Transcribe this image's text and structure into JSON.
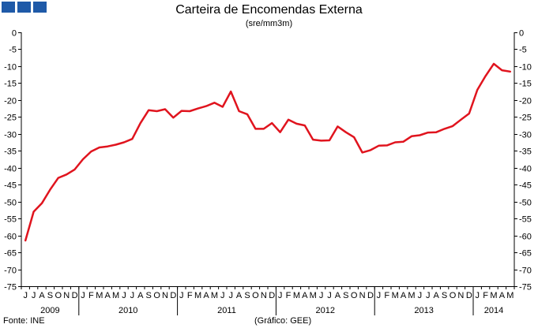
{
  "header": {
    "title": "Carteira de Encomendas Externa",
    "subtitle": "(sre/mm3m)"
  },
  "footer": {
    "source": "Fonte: INE",
    "credit": "(Gráfico: GEE)"
  },
  "colors": {
    "series": "#e0141e",
    "logo": "#1f5aa8"
  },
  "chart_data": {
    "type": "line",
    "title": "Carteira de Encomendas Externa",
    "subtitle": "(sre/mm3m)",
    "ylim": [
      -75,
      0
    ],
    "yticks": [
      0,
      -5,
      -10,
      -15,
      -20,
      -25,
      -30,
      -35,
      -40,
      -45,
      -50,
      -55,
      -60,
      -65,
      -70,
      -75
    ],
    "grid": false,
    "legend": "none",
    "month_labels": [
      "J",
      "J",
      "A",
      "S",
      "O",
      "N",
      "D",
      "J",
      "F",
      "M",
      "A",
      "M",
      "J",
      "J",
      "A",
      "S",
      "O",
      "N",
      "D",
      "J",
      "F",
      "M",
      "A",
      "M",
      "J",
      "J",
      "A",
      "S",
      "O",
      "N",
      "D",
      "J",
      "F",
      "M",
      "A",
      "M",
      "J",
      "J",
      "A",
      "S",
      "O",
      "N",
      "D",
      "J",
      "F",
      "M",
      "A",
      "M",
      "J",
      "J",
      "A",
      "S",
      "O",
      "N",
      "D",
      "J",
      "F",
      "M",
      "A",
      "M"
    ],
    "years": [
      {
        "label": "2009",
        "months": 7
      },
      {
        "label": "2010",
        "months": 12
      },
      {
        "label": "2011",
        "months": 12
      },
      {
        "label": "2012",
        "months": 12
      },
      {
        "label": "2013",
        "months": 12
      },
      {
        "label": "2014",
        "months": 5
      }
    ],
    "series": [
      {
        "values": [
          -61.5,
          -53,
          -50.5,
          -46.5,
          -43,
          -42,
          -40.5,
          -37.5,
          -35.2,
          -34,
          -33.7,
          -33.2,
          -32.5,
          -31.5,
          -26.8,
          -23,
          -23.3,
          -22.7,
          -25.2,
          -23.2,
          -23.3,
          -22.5,
          -21.8,
          -20.8,
          -22,
          -17.5,
          -23.3,
          -24.2,
          -28.5,
          -28.5,
          -26.8,
          -29.5,
          -25.8,
          -27,
          -27.5,
          -31.7,
          -32,
          -31.9,
          -27.8,
          -29.5,
          -31,
          -35.5,
          -34.8,
          -33.5,
          -33.4,
          -32.5,
          -32.3,
          -30.7,
          -30.4,
          -29.6,
          -29.5,
          -28.5,
          -27.7,
          -25.8,
          -24,
          -17,
          -12.9,
          -9.3,
          -11.2,
          -11.6
        ]
      }
    ]
  }
}
